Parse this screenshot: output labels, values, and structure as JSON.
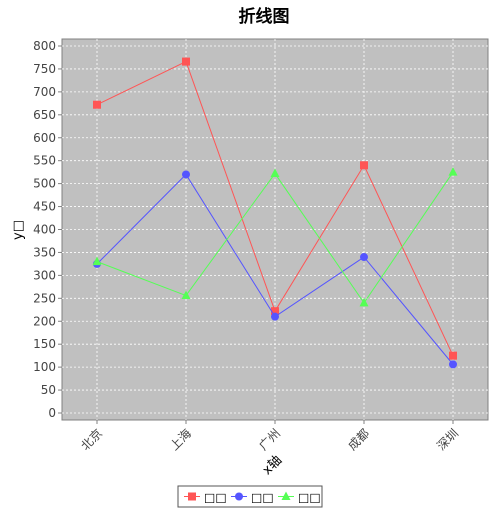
{
  "chart_data": {
    "type": "line",
    "title": "折线图",
    "xlabel": "x轴",
    "ylabel": "y□",
    "categories": [
      "北京",
      "上海",
      "广州",
      "成都",
      "深圳"
    ],
    "ylim": [
      0,
      800
    ],
    "yticks": [
      0,
      50,
      100,
      150,
      200,
      250,
      300,
      350,
      400,
      450,
      500,
      550,
      600,
      650,
      700,
      750,
      800
    ],
    "grid": true,
    "legend_position": "bottom",
    "series": [
      {
        "name": "□□",
        "values": [
          672,
          766,
          222,
          540,
          125
        ],
        "color": "#ff5555",
        "marker": "square"
      },
      {
        "name": "□□",
        "values": [
          325,
          520,
          210,
          340,
          106
        ],
        "color": "#5555ff",
        "marker": "circle"
      },
      {
        "name": "□□",
        "values": [
          330,
          256,
          522,
          240,
          525
        ],
        "color": "#55ff55",
        "marker": "triangle"
      }
    ],
    "plot_background": "#c0c0c0",
    "grid_color": "#ffffff"
  }
}
